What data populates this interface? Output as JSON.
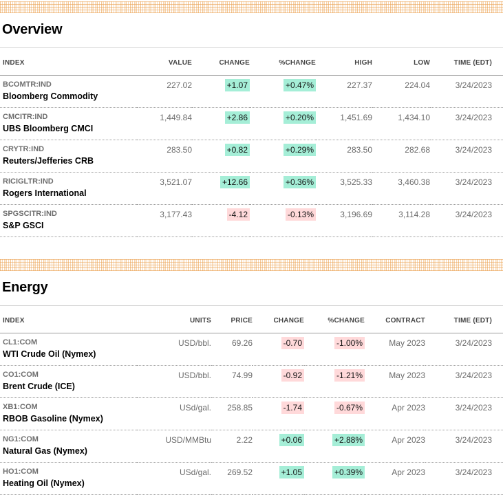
{
  "colors": {
    "positive_bg": "#a5eed7",
    "negative_bg": "#ffd9da",
    "band_line": "#eba050",
    "rule_light": "#d6d6d6",
    "rule_dark": "#9a9a9a",
    "header_text": "#454545",
    "text_muted": "#6b6b6b",
    "ticker": "#6e6e6e"
  },
  "sections": [
    {
      "title": "Overview",
      "columns": [
        "INDEX",
        "VALUE",
        "CHANGE",
        "%CHANGE",
        "HIGH",
        "LOW",
        "TIME (EDT)"
      ],
      "rows": [
        {
          "ticker": "BCOMTR:IND",
          "name": "Bloomberg Commodity",
          "value": "227.02",
          "change": "+1.07",
          "pct_change": "+0.47%",
          "high": "227.37",
          "low": "224.04",
          "time": "3/24/2023"
        },
        {
          "ticker": "CMCITR:IND",
          "name": "UBS Bloomberg CMCI",
          "value": "1,449.84",
          "change": "+2.86",
          "pct_change": "+0.20%",
          "high": "1,451.69",
          "low": "1,434.10",
          "time": "3/24/2023"
        },
        {
          "ticker": "CRYTR:IND",
          "name": "Reuters/Jefferies CRB",
          "value": "283.50",
          "change": "+0.82",
          "pct_change": "+0.29%",
          "high": "283.50",
          "low": "282.68",
          "time": "3/24/2023"
        },
        {
          "ticker": "RICIGLTR:IND",
          "name": "Rogers International",
          "value": "3,521.07",
          "change": "+12.66",
          "pct_change": "+0.36%",
          "high": "3,525.33",
          "low": "3,460.38",
          "time": "3/24/2023"
        },
        {
          "ticker": "SPGSCITR:IND",
          "name": "S&P GSCI",
          "value": "3,177.43",
          "change": "-4.12",
          "pct_change": "-0.13%",
          "high": "3,196.69",
          "low": "3,114.28",
          "time": "3/24/2023"
        }
      ]
    },
    {
      "title": "Energy",
      "columns": [
        "INDEX",
        "UNITS",
        "PRICE",
        "CHANGE",
        "%CHANGE",
        "CONTRACT",
        "TIME (EDT)"
      ],
      "rows": [
        {
          "ticker": "CL1:COM",
          "name": "WTI Crude Oil (Nymex)",
          "units": "USD/bbl.",
          "price": "69.26",
          "change": "-0.70",
          "pct_change": "-1.00%",
          "contract": "May 2023",
          "time": "3/24/2023"
        },
        {
          "ticker": "CO1:COM",
          "name": "Brent Crude (ICE)",
          "units": "USD/bbl.",
          "price": "74.99",
          "change": "-0.92",
          "pct_change": "-1.21%",
          "contract": "May 2023",
          "time": "3/24/2023"
        },
        {
          "ticker": "XB1:COM",
          "name": "RBOB Gasoline (Nymex)",
          "units": "USd/gal.",
          "price": "258.85",
          "change": "-1.74",
          "pct_change": "-0.67%",
          "contract": "Apr 2023",
          "time": "3/24/2023"
        },
        {
          "ticker": "NG1:COM",
          "name": "Natural Gas (Nymex)",
          "units": "USD/MMBtu",
          "price": "2.22",
          "change": "+0.06",
          "pct_change": "+2.88%",
          "contract": "Apr 2023",
          "time": "3/24/2023"
        },
        {
          "ticker": "HO1:COM",
          "name": "Heating Oil (Nymex)",
          "units": "USd/gal.",
          "price": "269.52",
          "change": "+1.05",
          "pct_change": "+0.39%",
          "contract": "Apr 2023",
          "time": "3/24/2023"
        }
      ]
    }
  ]
}
